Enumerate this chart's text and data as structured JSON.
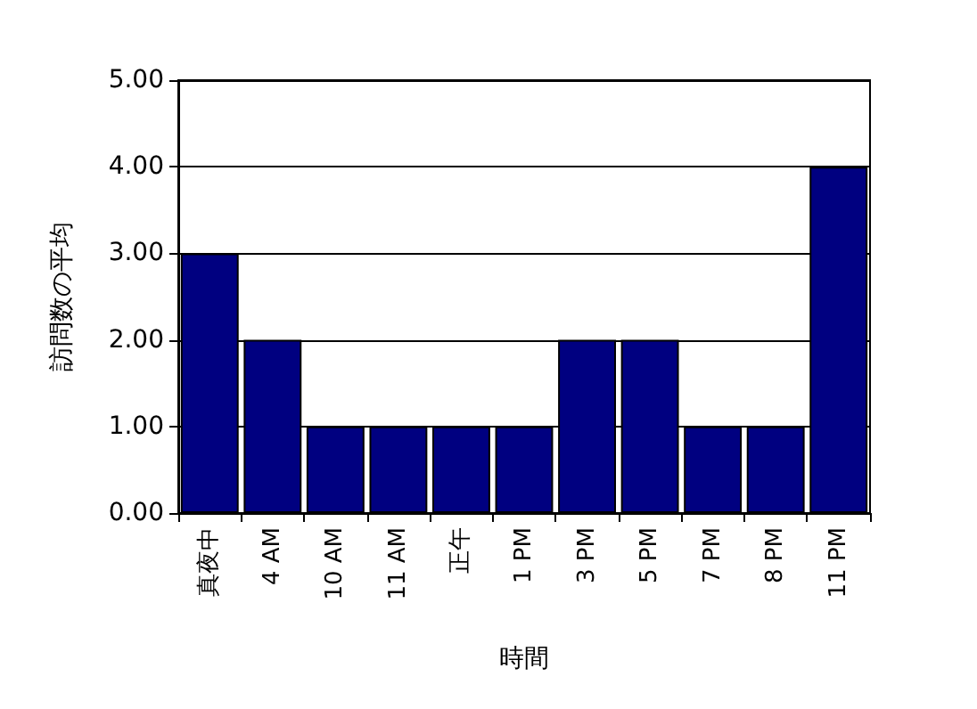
{
  "chart_data": {
    "type": "bar",
    "xlabel": "時間",
    "ylabel": "訪問数の平均",
    "categories": [
      "真夜中",
      "4 AM",
      "10 AM",
      "11 AM",
      "正午",
      "1 PM",
      "3 PM",
      "5 PM",
      "7 PM",
      "8 PM",
      "11 PM"
    ],
    "values": [
      3,
      2,
      1,
      1,
      1,
      1,
      2,
      2,
      1,
      1,
      4
    ],
    "color": "#000080",
    "ylim": [
      0,
      5
    ],
    "yticks": [
      {
        "value": 0,
        "label": "0.00"
      },
      {
        "value": 1,
        "label": "1.00"
      },
      {
        "value": 2,
        "label": "2.00"
      },
      {
        "value": 3,
        "label": "3.00"
      },
      {
        "value": 4,
        "label": "4.00"
      },
      {
        "value": 5,
        "label": "5.00"
      }
    ],
    "grid": "y"
  }
}
